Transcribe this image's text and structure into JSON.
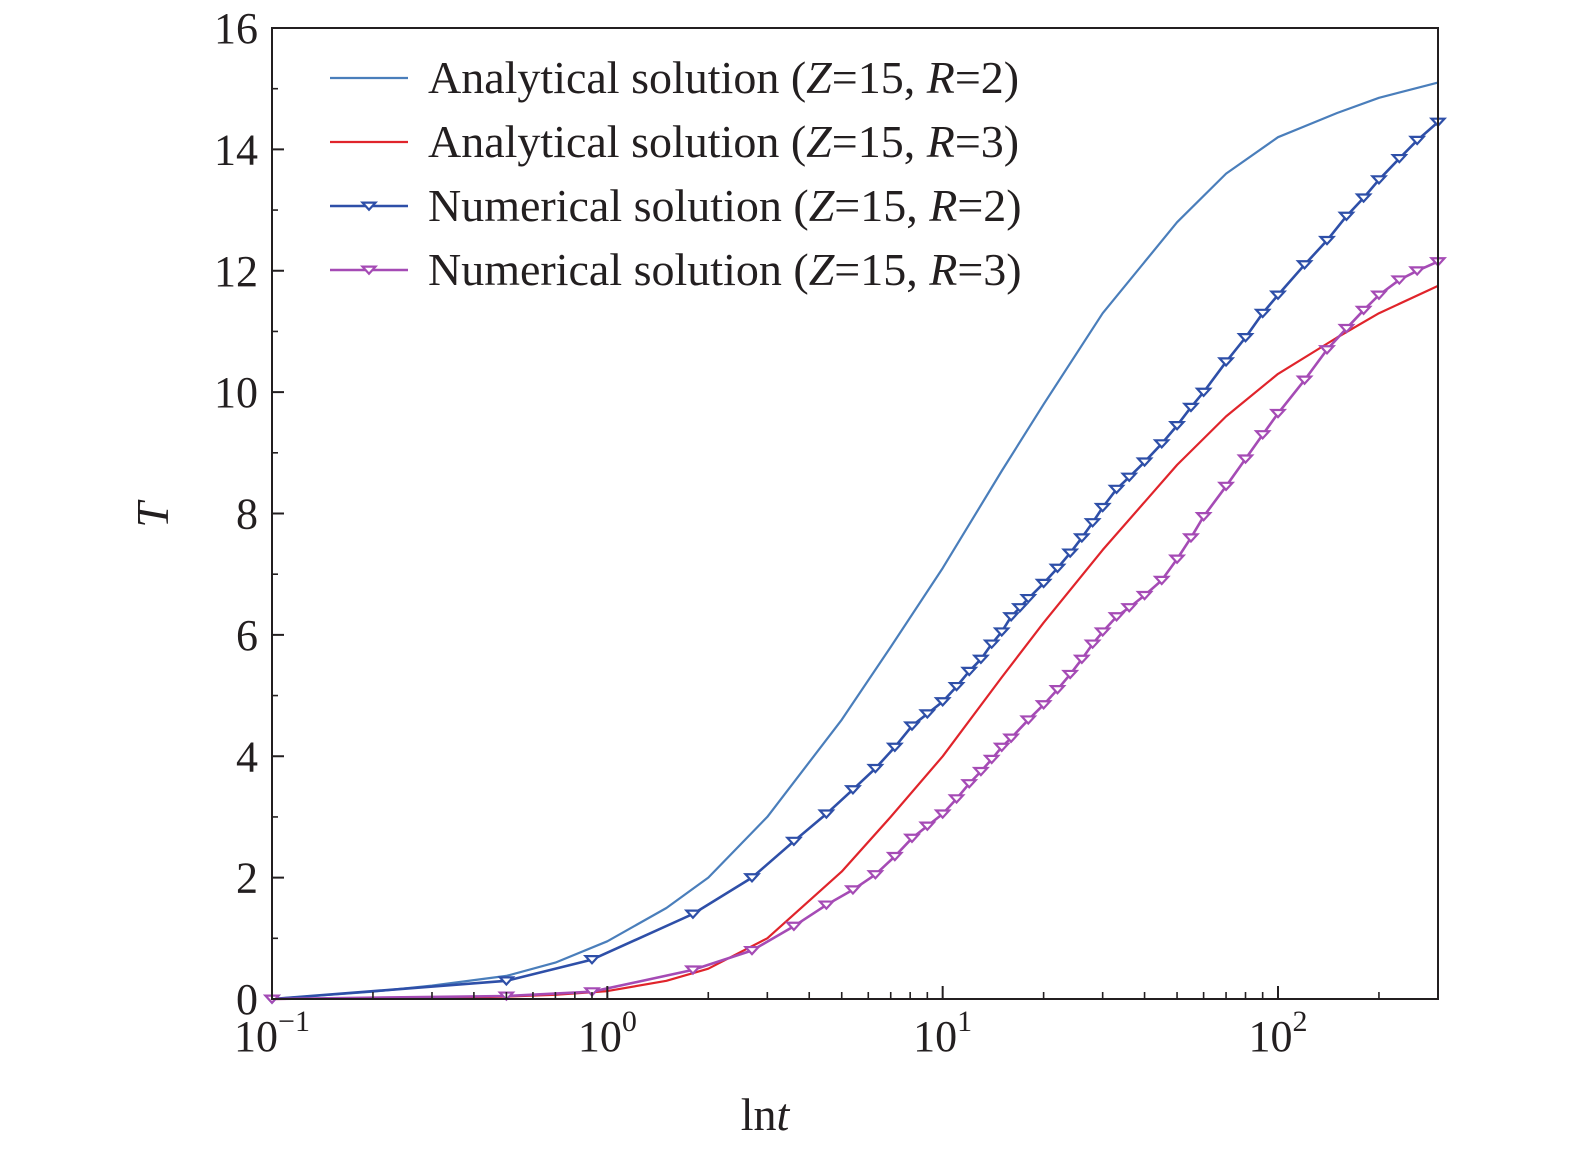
{
  "chart_data": {
    "type": "line",
    "title": "",
    "xlabel": {
      "prefix": "ln",
      "var": "t"
    },
    "ylabel": "T",
    "x_scale": "log",
    "xlim": [
      0.1,
      300
    ],
    "ylim": [
      0,
      16
    ],
    "y_ticks": [
      0,
      2,
      4,
      6,
      8,
      10,
      12,
      14,
      16
    ],
    "y_tick_labels": [
      "0",
      "2",
      "4",
      "6",
      "8",
      "10",
      "12",
      "14",
      "16"
    ],
    "x_ticks": [
      0.1,
      1,
      10,
      100
    ],
    "x_tick_labels": [
      {
        "base": "10",
        "exp": "−1"
      },
      {
        "base": "10",
        "exp": "0"
      },
      {
        "base": "10",
        "exp": "1"
      },
      {
        "base": "10",
        "exp": "2"
      }
    ],
    "grid": false,
    "legend_position": "top-left",
    "series": [
      {
        "name": "Analytical solution (Z=15, R=2)",
        "legend": {
          "pre": "Analytical solution (",
          "v1": "Z",
          "mid": "=15, ",
          "v2": "R",
          "post": "=2)"
        },
        "color": "#4a7ebb",
        "marker": "none",
        "x": [
          0.1,
          0.2,
          0.3,
          0.5,
          0.7,
          1.0,
          1.5,
          2,
          3,
          5,
          7,
          10,
          15,
          20,
          30,
          50,
          70,
          100,
          150,
          200,
          300
        ],
        "y": [
          0,
          0.12,
          0.22,
          0.38,
          0.6,
          0.95,
          1.5,
          2.0,
          3.0,
          4.6,
          5.8,
          7.1,
          8.7,
          9.8,
          11.3,
          12.8,
          13.6,
          14.2,
          14.6,
          14.85,
          15.1
        ]
      },
      {
        "name": "Analytical solution (Z=15, R=3)",
        "legend": {
          "pre": "Analytical solution (",
          "v1": "Z",
          "mid": "=15, ",
          "v2": "R",
          "post": "=3)"
        },
        "color": "#e0242b",
        "marker": "none",
        "x": [
          0.1,
          0.3,
          0.5,
          0.7,
          1.0,
          1.5,
          2,
          3,
          5,
          7,
          10,
          15,
          20,
          30,
          50,
          70,
          100,
          150,
          200,
          300
        ],
        "y": [
          0,
          0.02,
          0.04,
          0.07,
          0.13,
          0.3,
          0.5,
          1.0,
          2.1,
          3.0,
          4.0,
          5.3,
          6.2,
          7.4,
          8.8,
          9.6,
          10.3,
          10.9,
          11.3,
          11.75
        ]
      },
      {
        "name": "Numerical solution (Z=15, R=2)",
        "legend": {
          "pre": "Numerical solution (",
          "v1": "Z",
          "mid": "=15, ",
          "v2": "R",
          "post": "=2)"
        },
        "color": "#2e4fa8",
        "marker": "triangle-down",
        "x": [
          0.1,
          0.5,
          0.9,
          1.8,
          2.7,
          3.6,
          4.5,
          5.4,
          6.3,
          7.2,
          8.1,
          9,
          10,
          11,
          12,
          13,
          14,
          15,
          16,
          17,
          18,
          20,
          22,
          24,
          26,
          28,
          30,
          33,
          36,
          40,
          45,
          50,
          55,
          60,
          70,
          80,
          90,
          100,
          120,
          140,
          160,
          180,
          200,
          230,
          260,
          300
        ],
        "y": [
          0,
          0.3,
          0.65,
          1.4,
          2.0,
          2.6,
          3.05,
          3.45,
          3.8,
          4.15,
          4.5,
          4.7,
          4.9,
          5.15,
          5.4,
          5.6,
          5.85,
          6.05,
          6.3,
          6.45,
          6.6,
          6.85,
          7.1,
          7.35,
          7.6,
          7.85,
          8.1,
          8.4,
          8.6,
          8.85,
          9.15,
          9.45,
          9.75,
          10.0,
          10.5,
          10.9,
          11.3,
          11.6,
          12.1,
          12.5,
          12.9,
          13.2,
          13.5,
          13.85,
          14.15,
          14.45
        ]
      },
      {
        "name": "Numerical solution (Z=15, R=3)",
        "legend": {
          "pre": "Numerical solution (",
          "v1": "Z",
          "mid": "=15, ",
          "v2": "R",
          "post": "=3)"
        },
        "color": "#a54bb5",
        "marker": "triangle-down",
        "x": [
          0.1,
          0.5,
          0.9,
          1.8,
          2.7,
          3.6,
          4.5,
          5.4,
          6.3,
          7.2,
          8.1,
          9,
          10,
          11,
          12,
          13,
          14,
          15,
          16,
          18,
          20,
          22,
          24,
          26,
          28,
          30,
          33,
          36,
          40,
          45,
          50,
          55,
          60,
          70,
          80,
          90,
          100,
          120,
          140,
          160,
          180,
          200,
          230,
          260,
          300
        ],
        "y": [
          0,
          0.05,
          0.12,
          0.48,
          0.8,
          1.2,
          1.55,
          1.8,
          2.05,
          2.35,
          2.65,
          2.85,
          3.05,
          3.3,
          3.55,
          3.75,
          3.95,
          4.15,
          4.3,
          4.6,
          4.85,
          5.1,
          5.35,
          5.6,
          5.85,
          6.05,
          6.3,
          6.45,
          6.65,
          6.9,
          7.25,
          7.6,
          7.95,
          8.45,
          8.9,
          9.3,
          9.65,
          10.2,
          10.7,
          11.05,
          11.35,
          11.6,
          11.85,
          12.0,
          12.15
        ]
      }
    ]
  }
}
